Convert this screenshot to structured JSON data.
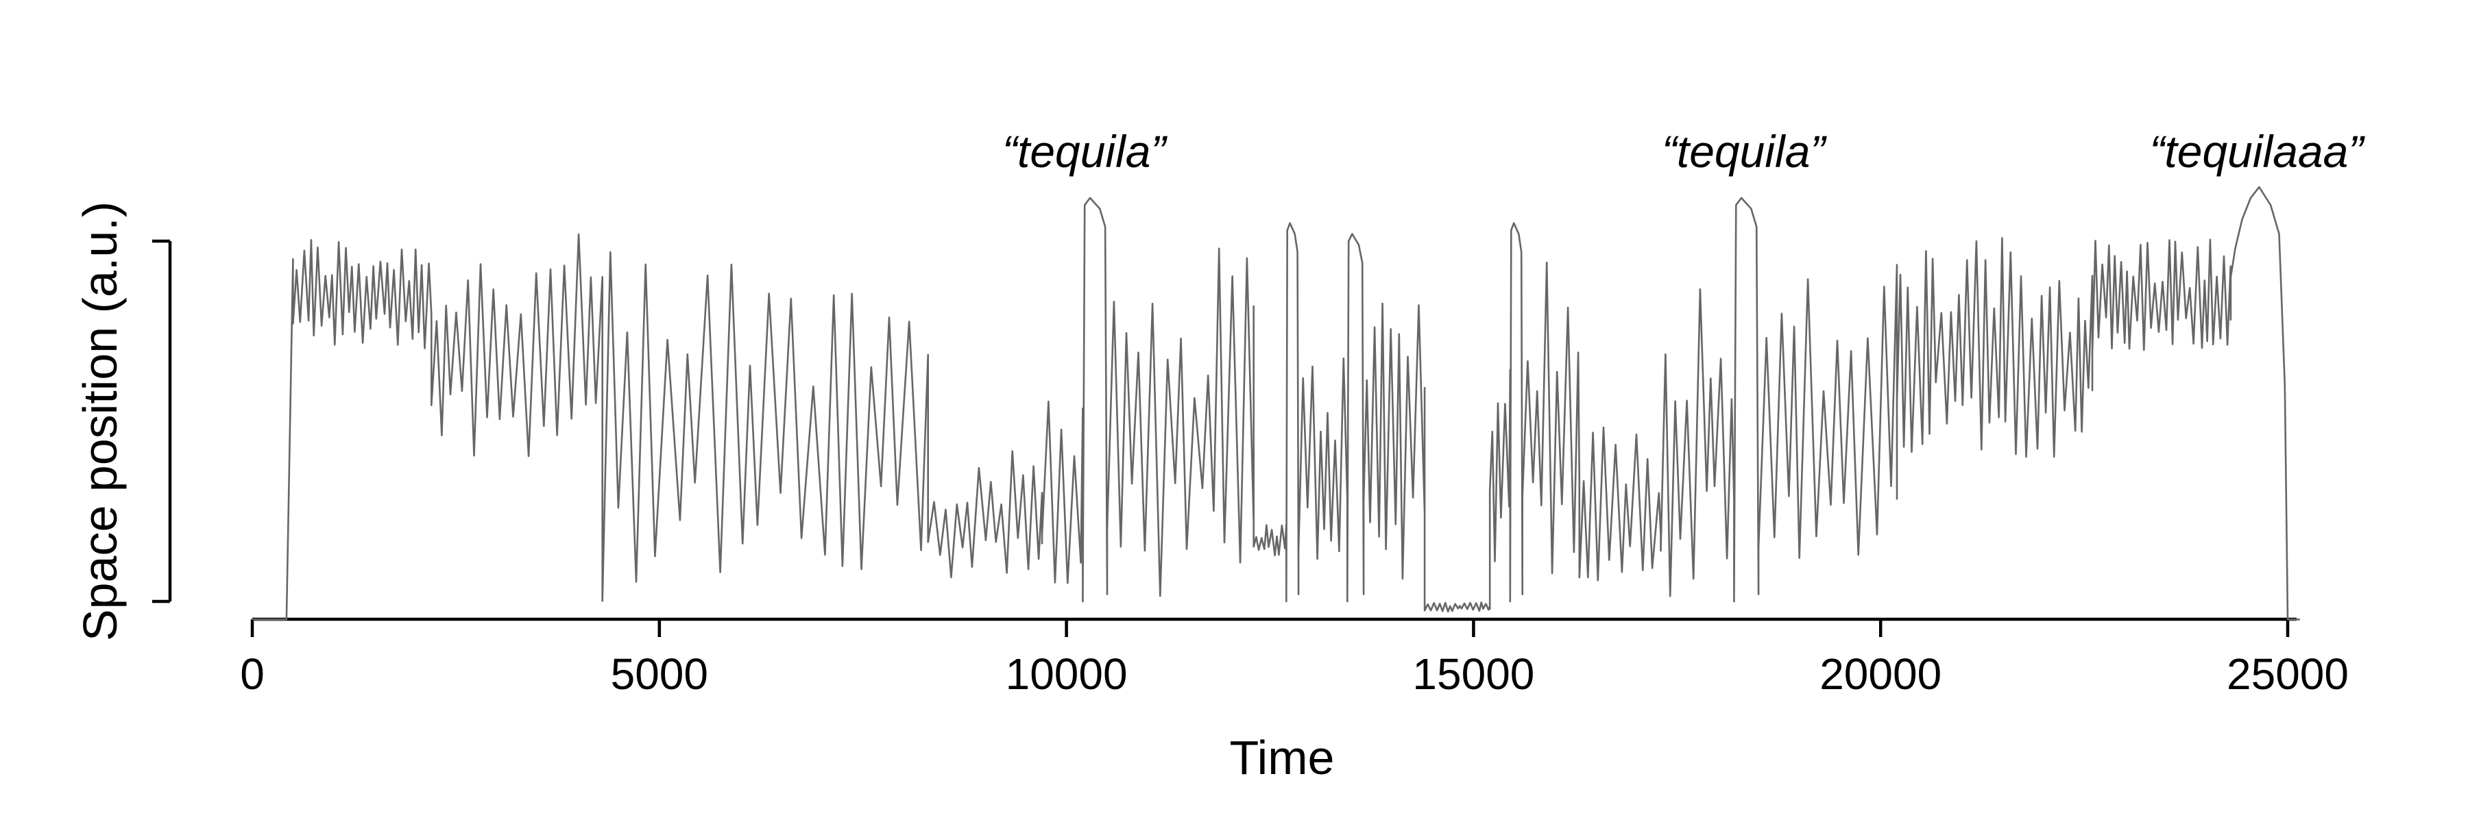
{
  "chart_data": {
    "type": "line",
    "title": "",
    "xlabel": "Time",
    "ylabel": "Space position (a.u.)",
    "xlim": [
      0,
      25000
    ],
    "ylim": [
      0,
      1
    ],
    "xticks": [
      0,
      5000,
      10000,
      15000,
      20000,
      25000
    ],
    "xtick_labels": [
      "0",
      "5000",
      "10000",
      "15000",
      "20000",
      "25000"
    ],
    "ytick_labels": [
      "",
      ""
    ],
    "grid": false,
    "series_color": "#666666",
    "annotations": [
      {
        "text": "“tequila”",
        "x": 10300
      },
      {
        "text": "“tequila”",
        "x": 18400
      },
      {
        "text": "“tequilaaa”",
        "x": 24700
      }
    ],
    "series": [
      {
        "segments": [
          {
            "x0": 0,
            "x1": 420,
            "kind": "flat",
            "level": -0.05
          },
          {
            "x0": 420,
            "x1": 500,
            "kind": "ramp",
            "from": -0.05,
            "to": 0.95
          },
          {
            "x0": 500,
            "x1": 2200,
            "kind": "osc",
            "low": 0.7,
            "high": 1.02,
            "period": 80
          },
          {
            "x0": 2200,
            "x1": 4300,
            "kind": "osc",
            "low": 0.4,
            "high": 1.02,
            "period": 150
          },
          {
            "x0": 4300,
            "x1": 8300,
            "kind": "osc",
            "low": -0.03,
            "high": 1.0,
            "period": 260
          },
          {
            "x0": 8300,
            "x1": 9700,
            "kind": "osc",
            "low": 0.05,
            "high": 0.42,
            "period": 150
          },
          {
            "x0": 9700,
            "x1": 10200,
            "kind": "osc",
            "low": 0.02,
            "high": 0.7,
            "period": 140
          },
          {
            "x0": 10200,
            "x1": 10500,
            "kind": "plateau",
            "level": 1.12
          },
          {
            "x0": 10500,
            "x1": 12300,
            "kind": "osc",
            "low": 0.0,
            "high": 1.0,
            "period": 150
          },
          {
            "x0": 12300,
            "x1": 12700,
            "kind": "osc",
            "low": 0.12,
            "high": 0.22,
            "period": 60
          },
          {
            "x0": 12700,
            "x1": 12850,
            "kind": "plateau",
            "level": 1.05
          },
          {
            "x0": 12850,
            "x1": 13450,
            "kind": "osc",
            "low": 0.1,
            "high": 0.7,
            "period": 100
          },
          {
            "x0": 13450,
            "x1": 13650,
            "kind": "plateau",
            "level": 1.02
          },
          {
            "x0": 13650,
            "x1": 14400,
            "kind": "osc",
            "low": 0.05,
            "high": 0.9,
            "period": 110
          },
          {
            "x0": 14400,
            "x1": 15200,
            "kind": "osc",
            "low": -0.03,
            "high": 0.0,
            "period": 60
          },
          {
            "x0": 15200,
            "x1": 15450,
            "kind": "osc",
            "low": 0.1,
            "high": 0.7,
            "period": 80
          },
          {
            "x0": 15450,
            "x1": 15600,
            "kind": "plateau",
            "level": 1.05
          },
          {
            "x0": 15600,
            "x1": 16300,
            "kind": "osc",
            "low": 0.05,
            "high": 1.0,
            "period": 140
          },
          {
            "x0": 16300,
            "x1": 17300,
            "kind": "osc",
            "low": 0.05,
            "high": 0.5,
            "period": 140
          },
          {
            "x0": 17300,
            "x1": 18200,
            "kind": "osc",
            "low": 0.0,
            "high": 0.95,
            "period": 130
          },
          {
            "x0": 18200,
            "x1": 18500,
            "kind": "plateau",
            "level": 1.12
          },
          {
            "x0": 18500,
            "x1": 20200,
            "kind": "osc",
            "low": 0.0,
            "high": 0.95,
            "period": 180
          },
          {
            "x0": 20200,
            "x1": 22600,
            "kind": "osc",
            "low": 0.4,
            "high": 1.02,
            "period": 110
          },
          {
            "x0": 22600,
            "x1": 24300,
            "kind": "osc",
            "low": 0.68,
            "high": 1.02,
            "period": 80
          },
          {
            "x0": 24300,
            "x1": 25000,
            "kind": "dome",
            "level": 1.15
          },
          {
            "x0": 25000,
            "x1": 25150,
            "kind": "flat",
            "level": -0.05
          }
        ]
      }
    ]
  }
}
